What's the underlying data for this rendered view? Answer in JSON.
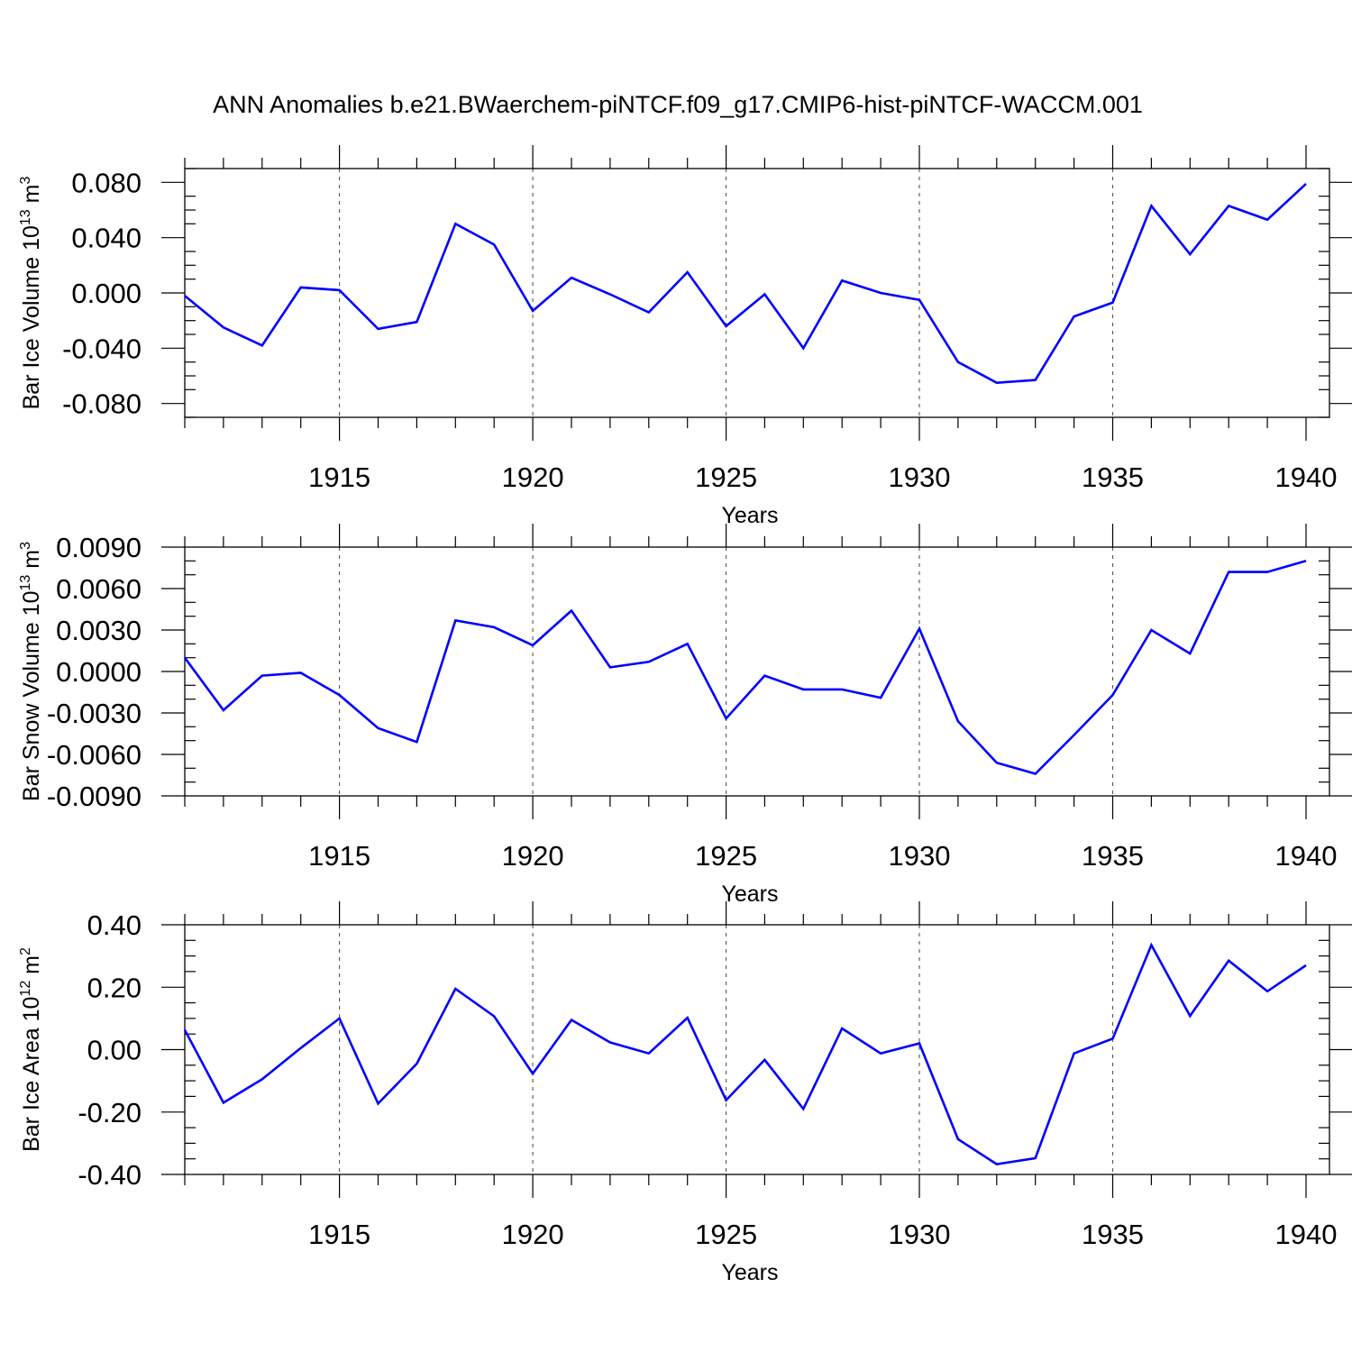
{
  "chart_data": {
    "title": "ANN Anomalies b.e21.BWaerchem-piNTCF.f09_g17.CMIP6-hist-piNTCF-WACCM.001",
    "line_color": "#0000ff",
    "years": [
      1911,
      1912,
      1913,
      1914,
      1915,
      1916,
      1917,
      1918,
      1919,
      1920,
      1921,
      1922,
      1923,
      1924,
      1925,
      1926,
      1927,
      1928,
      1929,
      1930,
      1931,
      1932,
      1933,
      1934,
      1935,
      1936,
      1937,
      1938,
      1939,
      1940
    ],
    "panels": [
      {
        "type": "line",
        "name": "ice-volume",
        "ylabel_main": "Bar Ice Volume 10",
        "ylabel_exp": "13",
        "ylabel_unit": "m",
        "ylabel_unit_exp": "3",
        "xlabel": "Years",
        "xlim": [
          1911,
          1940
        ],
        "ylim": [
          -0.09,
          0.09
        ],
        "yticks": [
          0.08,
          0.04,
          0.0,
          -0.04,
          -0.08
        ],
        "ytick_labels": [
          "0.080",
          "0.040",
          "0.000",
          "-0.040",
          "-0.080"
        ],
        "yminor_step": 0.01,
        "xticks": [
          1915,
          1920,
          1925,
          1930,
          1935,
          1940
        ],
        "xtick_labels": [
          "1915",
          "1920",
          "1925",
          "1930",
          "1935",
          "1940"
        ],
        "values": [
          -0.002,
          -0.025,
          -0.038,
          0.004,
          0.002,
          -0.026,
          -0.021,
          0.05,
          0.035,
          -0.013,
          0.011,
          -0.001,
          -0.014,
          0.015,
          -0.024,
          -0.001,
          -0.04,
          0.009,
          0.0,
          -0.005,
          -0.05,
          -0.065,
          -0.063,
          -0.017,
          -0.007,
          0.063,
          0.028,
          0.063,
          0.053,
          0.079
        ]
      },
      {
        "type": "line",
        "name": "snow-volume",
        "ylabel_main": "Bar Snow Volume 10",
        "ylabel_exp": "13",
        "ylabel_unit": "m",
        "ylabel_unit_exp": "3",
        "xlabel": "Years",
        "xlim": [
          1911,
          1940
        ],
        "ylim": [
          -0.009,
          0.009
        ],
        "yticks": [
          0.009,
          0.006,
          0.003,
          0.0,
          -0.003,
          -0.006,
          -0.009
        ],
        "ytick_labels": [
          "0.0090",
          "0.0060",
          "0.0030",
          "0.0000",
          "-0.0030",
          "-0.0060",
          "-0.0090"
        ],
        "yminor_step": 0.001,
        "xticks": [
          1915,
          1920,
          1925,
          1930,
          1935,
          1940
        ],
        "xtick_labels": [
          "1915",
          "1920",
          "1925",
          "1930",
          "1935",
          "1940"
        ],
        "values": [
          0.001,
          -0.0028,
          -0.0003,
          -0.0001,
          -0.0017,
          -0.0041,
          -0.0051,
          0.0037,
          0.0032,
          0.0019,
          0.0044,
          0.0003,
          0.0007,
          0.002,
          -0.0034,
          -0.0003,
          -0.0013,
          -0.0013,
          -0.0019,
          0.0031,
          -0.0036,
          -0.0066,
          -0.0074,
          -0.0046,
          -0.0017,
          0.003,
          0.0013,
          0.0072,
          0.0072,
          0.008
        ]
      },
      {
        "type": "line",
        "name": "ice-area",
        "ylabel_main": "Bar Ice Area 10",
        "ylabel_exp": "12",
        "ylabel_unit": "m",
        "ylabel_unit_exp": "2",
        "xlabel": "Years",
        "xlim": [
          1911,
          1940
        ],
        "ylim": [
          -0.4,
          0.4
        ],
        "yticks": [
          0.4,
          0.2,
          0.0,
          -0.2,
          -0.4
        ],
        "ytick_labels": [
          "0.40",
          "0.20",
          "0.00",
          "-0.20",
          "-0.40"
        ],
        "yminor_step": 0.05,
        "xticks": [
          1915,
          1920,
          1925,
          1930,
          1935,
          1940
        ],
        "xtick_labels": [
          "1915",
          "1920",
          "1925",
          "1930",
          "1935",
          "1940"
        ],
        "values": [
          0.063,
          -0.17,
          -0.095,
          0.005,
          0.1,
          -0.173,
          -0.045,
          0.195,
          0.107,
          -0.077,
          0.095,
          0.023,
          -0.012,
          0.102,
          -0.162,
          -0.033,
          -0.19,
          0.068,
          -0.012,
          0.02,
          -0.287,
          -0.367,
          -0.348,
          -0.012,
          0.035,
          0.335,
          0.108,
          0.285,
          0.187,
          0.27
        ]
      }
    ]
  }
}
